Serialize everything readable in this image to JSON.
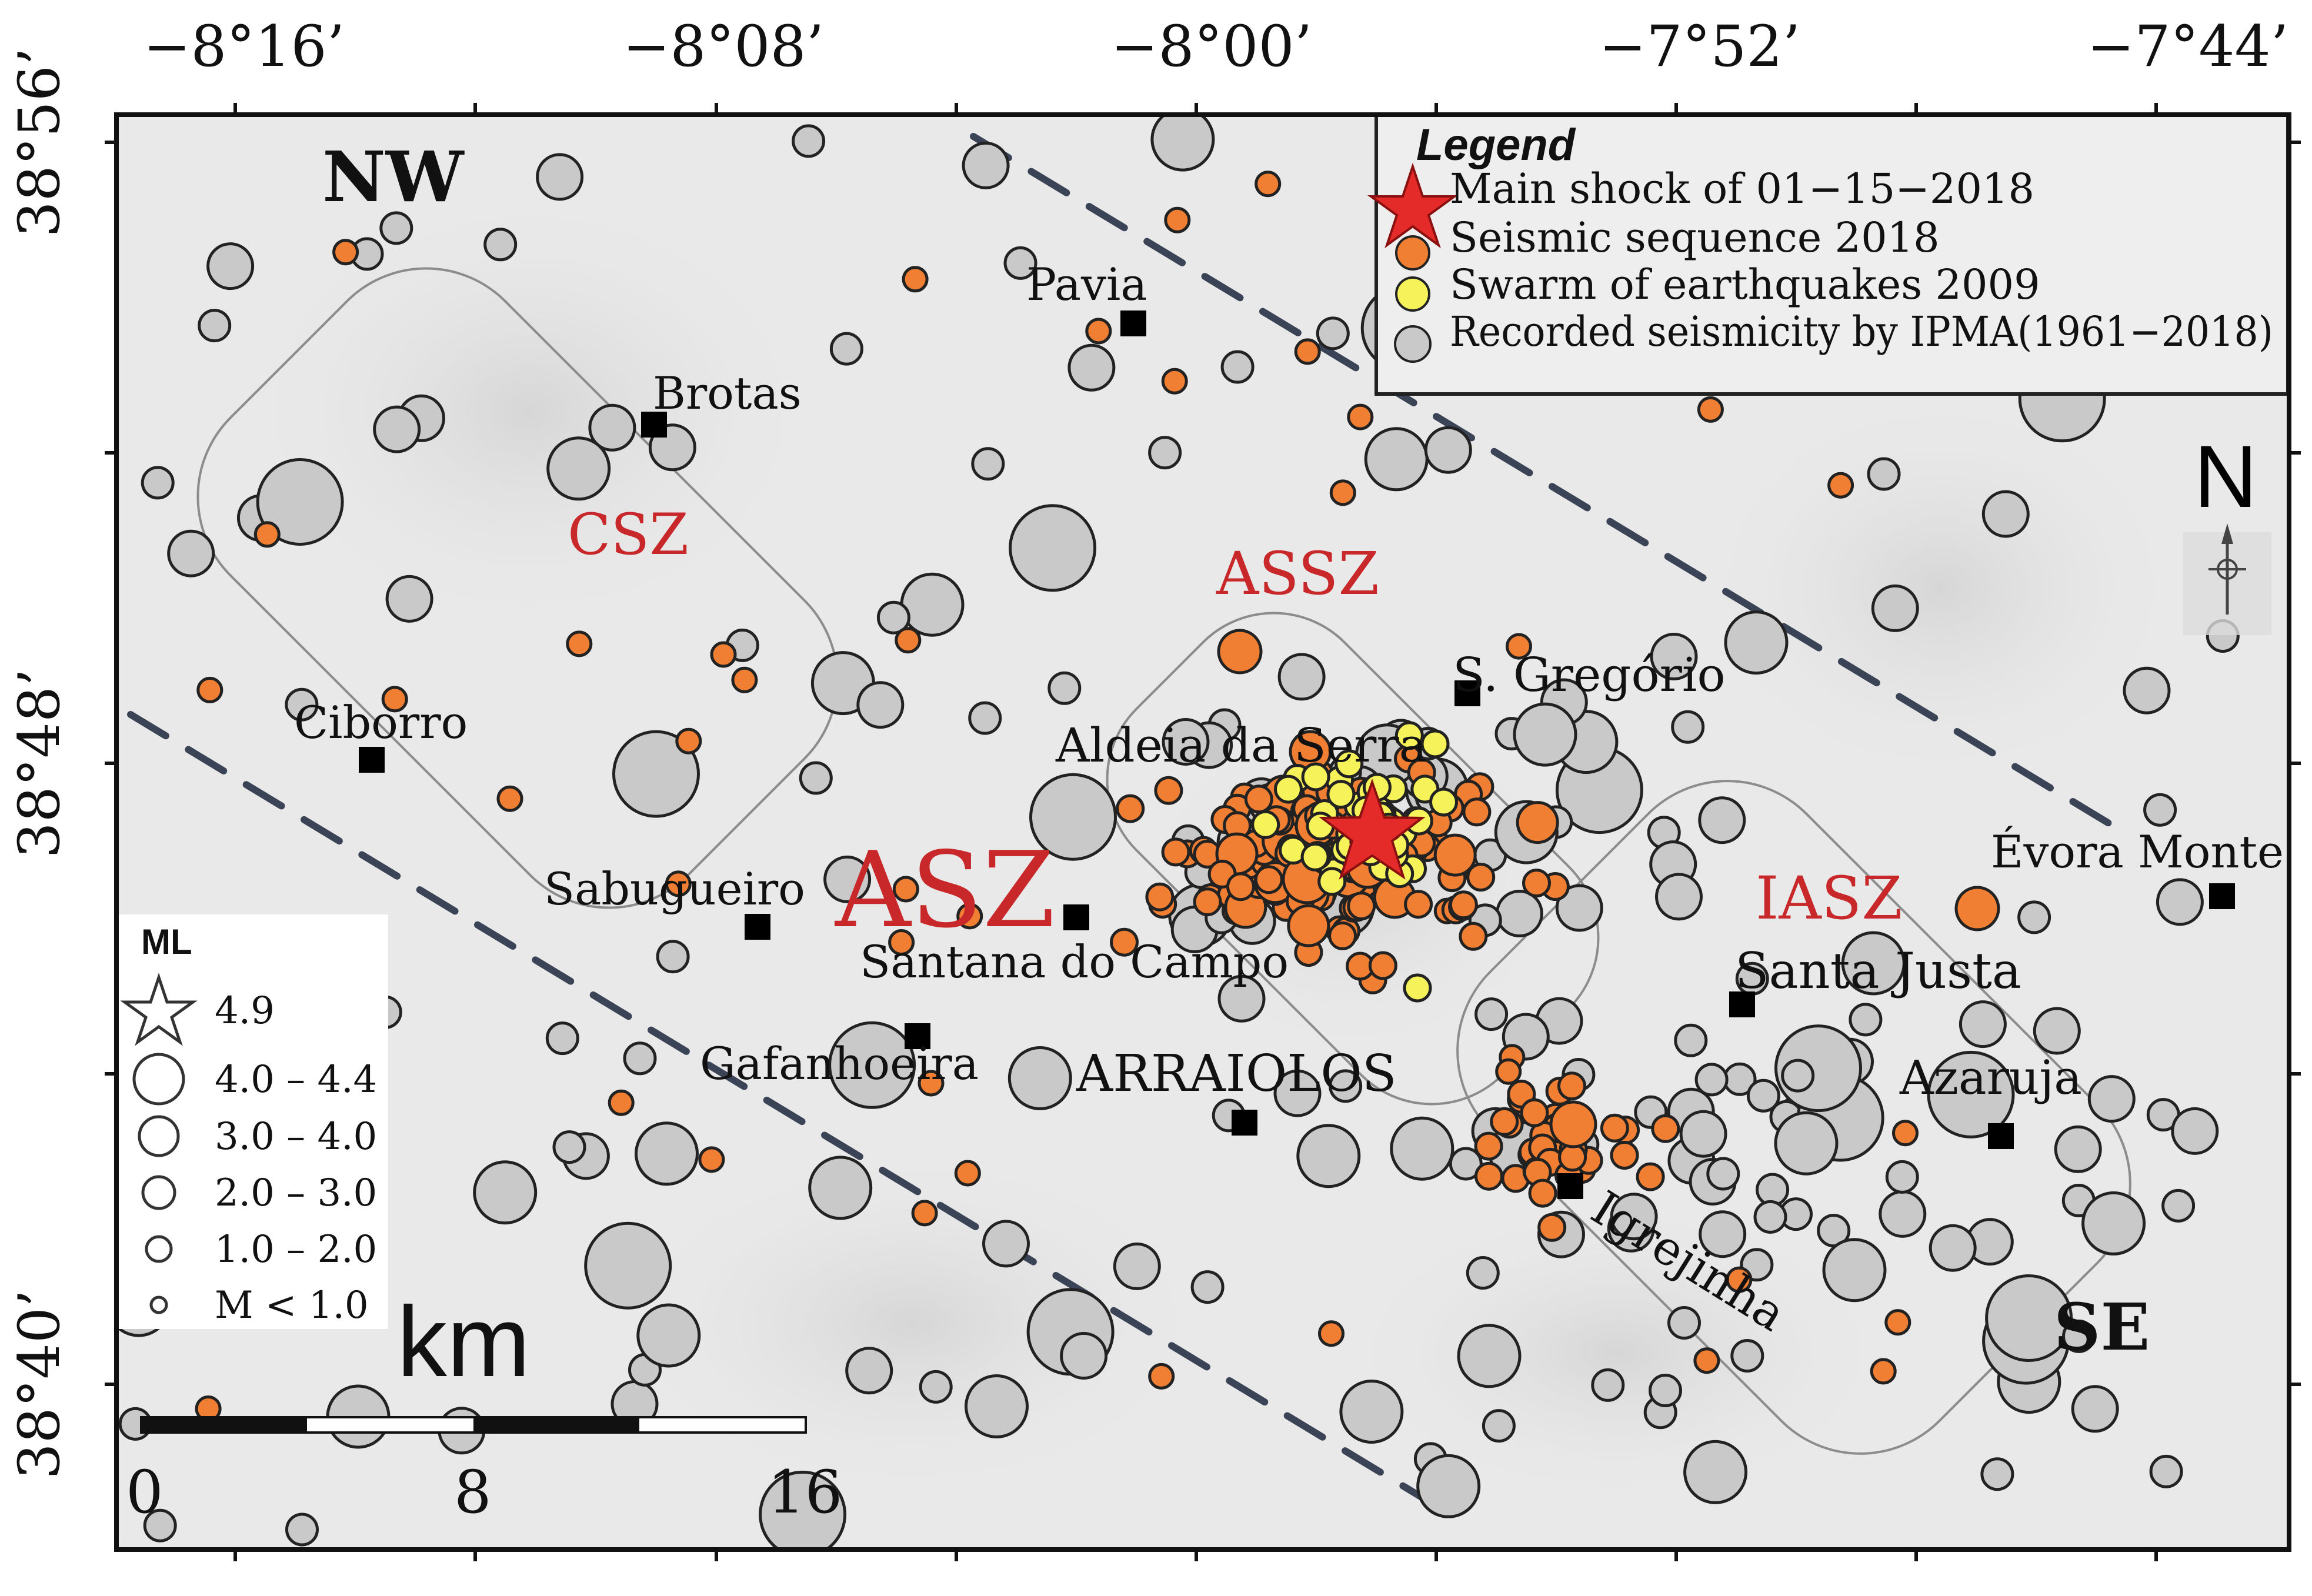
{
  "axes": {
    "top_ticks": [
      "−8°16’",
      "−8°08’",
      "−8°00’",
      "−7°52’",
      "−7°44’"
    ],
    "left_ticks": [
      "38°56’",
      "38°48’",
      "38°40’"
    ]
  },
  "legend": {
    "title": "Legend",
    "entries": [
      {
        "label": "Main shock of 01−15−2018",
        "symbol": "star",
        "color": "#e52a2a"
      },
      {
        "label": "Seismic sequence 2018",
        "symbol": "circle",
        "color": "#f07f33"
      },
      {
        "label": "Swarm of earthquakes 2009",
        "symbol": "circle",
        "color": "#f6f35a"
      },
      {
        "label": "Recorded seismicity by IPMA(1961−2018)",
        "symbol": "circle",
        "color": "#c9c9c9"
      }
    ]
  },
  "magnitude_legend": {
    "title": "ML",
    "items": [
      "4.9",
      "4.0 – 4.4",
      "3.0 – 4.0",
      "2.0 – 3.0",
      "1.0 – 2.0",
      "M < 1.0"
    ]
  },
  "scale_bar": {
    "unit": "km",
    "labels": [
      "0",
      "8",
      "16"
    ]
  },
  "corners": {
    "nw": "NW",
    "se": "SE"
  },
  "north_arrow": "N",
  "zones": [
    {
      "id": "csz",
      "label": "CSZ"
    },
    {
      "id": "assz",
      "label": "ASSZ"
    },
    {
      "id": "asz",
      "label": "ASZ"
    },
    {
      "id": "iasz",
      "label": "IASZ"
    }
  ],
  "places": [
    "Pavia",
    "Brotas",
    "Ciborro",
    "S. Gregório",
    "Aldeia da Serra",
    "Sabugueiro",
    "Santana do Campo",
    "Gafanhoeira",
    "ARRAIOLOS",
    "Évora Monte",
    "Santa Justa",
    "Azaruja",
    "Igrejinha"
  ],
  "colors": {
    "ipma": "#c9c9c9",
    "seq2018": "#f07f33",
    "swarm2009": "#f6f35a",
    "mainshock": "#e52a2a",
    "zone_label": "#c8282a",
    "background": "#e9e9e9"
  }
}
